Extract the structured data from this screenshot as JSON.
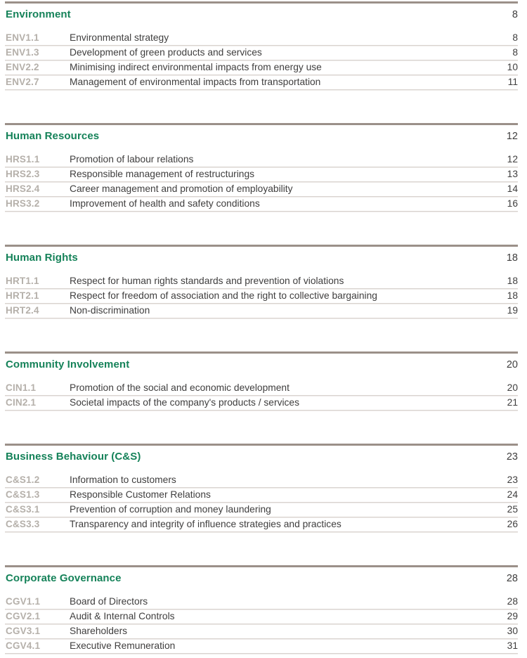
{
  "page": {
    "background": "#ffffff",
    "accent_green": "#158259",
    "code_gray": "#b5b0aa",
    "body_text_color": "#3f3e3e",
    "thick_rule_color": "#9b9089",
    "thin_rule_color": "#d9d3cf"
  },
  "sections": [
    {
      "title": "Environment",
      "page": "8",
      "entries": [
        {
          "code": "ENV1.1",
          "title": "Environmental strategy",
          "page": "8"
        },
        {
          "code": "ENV1.3",
          "title": "Development of  green products and services",
          "page": "8"
        },
        {
          "code": "ENV2.2",
          "title": "Minimising indirect environmental impacts from energy use",
          "page": "10"
        },
        {
          "code": "ENV2.7",
          "title": "Management of environmental impacts from transportation",
          "page": "11"
        }
      ]
    },
    {
      "title": "Human Resources",
      "page": "12",
      "entries": [
        {
          "code": "HRS1.1",
          "title": "Promotion of labour relations",
          "page": "12"
        },
        {
          "code": "HRS2.3",
          "title": "Responsible management of restructurings",
          "page": "13"
        },
        {
          "code": "HRS2.4",
          "title": "Career management and promotion of employability",
          "page": "14"
        },
        {
          "code": "HRS3.2",
          "title": "Improvement of health and safety conditions",
          "page": "16"
        }
      ]
    },
    {
      "title": "Human Rights",
      "page": "18",
      "entries": [
        {
          "code": "HRT1.1",
          "title": "Respect for human rights standards and prevention of violations",
          "page": "18"
        },
        {
          "code": "HRT2.1",
          "title": "Respect for freedom of association and the right to collective bargaining",
          "page": "18"
        },
        {
          "code": "HRT2.4",
          "title": "Non-discrimination",
          "page": "19"
        }
      ]
    },
    {
      "title": "Community Involvement",
      "page": "20",
      "entries": [
        {
          "code": "CIN1.1",
          "title": "Promotion of the social and economic development",
          "page": "20"
        },
        {
          "code": "CIN2.1",
          "title": "Societal impacts of the company's products / services",
          "page": "21"
        }
      ]
    },
    {
      "title": "Business Behaviour (C&S)",
      "page": "23",
      "entries": [
        {
          "code": "C&S1.2",
          "title": "Information to customers",
          "page": "23"
        },
        {
          "code": "C&S1.3",
          "title": "Responsible Customer Relations",
          "page": "24"
        },
        {
          "code": "C&S3.1",
          "title": "Prevention of corruption and money laundering",
          "page": "25"
        },
        {
          "code": "C&S3.3",
          "title": "Transparency and integrity of influence strategies and practices",
          "page": "26"
        }
      ]
    },
    {
      "title": "Corporate Governance",
      "page": "28",
      "entries": [
        {
          "code": "CGV1.1",
          "title": "Board of Directors",
          "page": "28"
        },
        {
          "code": "CGV2.1",
          "title": "Audit & Internal Controls",
          "page": "29"
        },
        {
          "code": "CGV3.1",
          "title": "Shareholders",
          "page": "30"
        },
        {
          "code": "CGV4.1",
          "title": "Executive Remuneration",
          "page": "31"
        }
      ]
    }
  ]
}
